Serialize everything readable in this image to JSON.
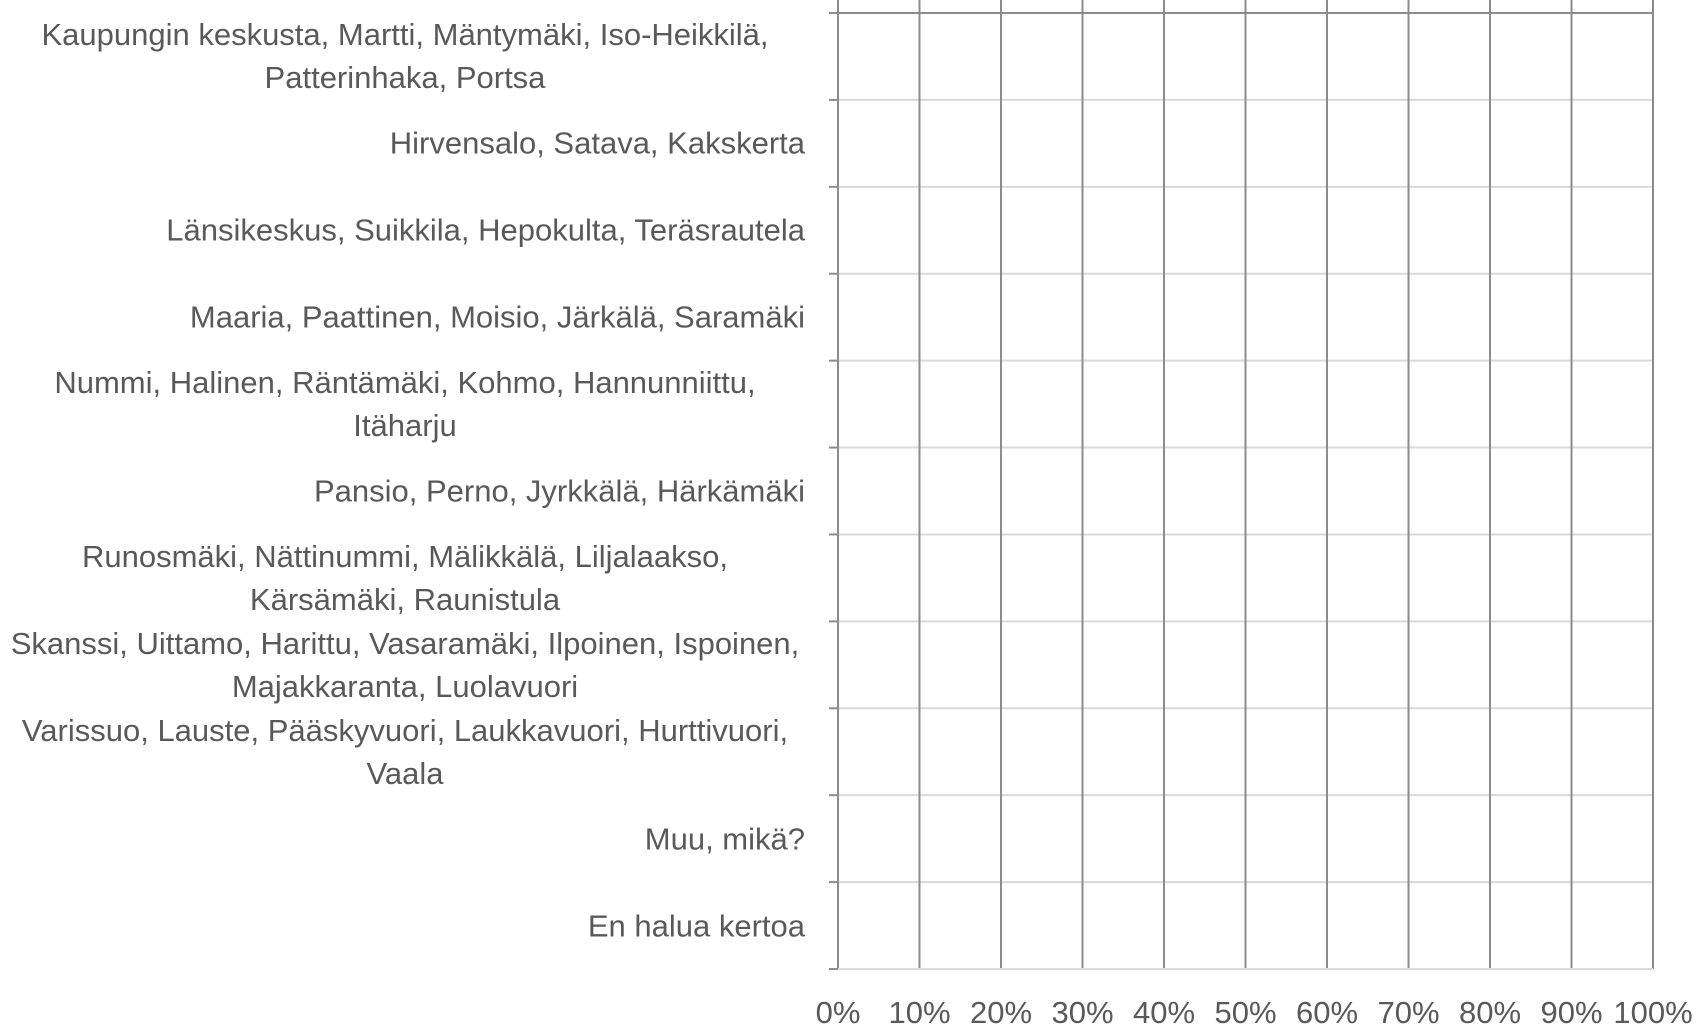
{
  "chart_data": {
    "type": "bar",
    "orientation": "horizontal",
    "categories": [
      "Kaupungin keskusta, Martti, Mäntymäki, Iso-Heikkilä, Patterinhaka, Portsa",
      "Hirvensalo, Satava, Kakskerta",
      "Länsikeskus, Suikkila, Hepokulta, Teräsrautela",
      "Maaria, Paattinen, Moisio, Järkälä, Saramäki",
      "Nummi, Halinen, Räntämäki, Kohmo, Hannunniittu, Itäharju",
      "Pansio, Perno, Jyrkkälä, Härkämäki",
      "Runosmäki, Nättinummi, Mälikkälä, Liljalaakso, Kärsämäki, Raunistula",
      "Skanssi, Uittamo, Harittu, Vasaramäki, Ilpoinen, Ispoinen, Majakkaranta, Luolavuori",
      "Varissuo, Lauste, Pääskyvuori, Laukkavuori, Hurttivuori, Vaala",
      "Muu, mikä?",
      "En halua kertoa"
    ],
    "xlim": [
      0,
      100
    ],
    "xticks": [
      {
        "value": 0,
        "label": "0%"
      },
      {
        "value": 10,
        "label": "10%"
      },
      {
        "value": 20,
        "label": "20%"
      },
      {
        "value": 30,
        "label": "30%"
      },
      {
        "value": 40,
        "label": "40%"
      },
      {
        "value": 50,
        "label": "50%"
      },
      {
        "value": 60,
        "label": "60%"
      },
      {
        "value": 70,
        "label": "70%"
      },
      {
        "value": 80,
        "label": "80%"
      },
      {
        "value": 90,
        "label": "90%"
      },
      {
        "value": 100,
        "label": "100%"
      }
    ],
    "grid": true
  }
}
